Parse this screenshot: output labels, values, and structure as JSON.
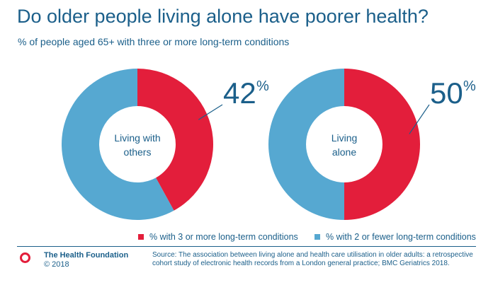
{
  "header": {
    "title": "Do older people living alone have poorer health?",
    "subtitle": "% of people aged 65+ with three or more long-term conditions"
  },
  "chart_data": {
    "type": "pie",
    "variant": "donut",
    "series_names": [
      "% with 3 or more long-term conditions",
      "% with 2 or fewer long-term conditions"
    ],
    "colors": [
      "#e31e3b",
      "#56a8d1"
    ],
    "legend_position": "bottom-right",
    "charts": [
      {
        "center_label": [
          "Living with",
          "others"
        ],
        "values": [
          42,
          58
        ],
        "value_label": "42",
        "value_unit": "%"
      },
      {
        "center_label": [
          "Living",
          "alone"
        ],
        "values": [
          50,
          50
        ],
        "value_label": "50",
        "value_unit": "%"
      }
    ]
  },
  "legend": {
    "items": [
      {
        "label": "% with 3 or more long-term conditions",
        "color": "#e31e3b"
      },
      {
        "label": "% with 2 or fewer long-term conditions",
        "color": "#56a8d1"
      }
    ]
  },
  "footer": {
    "org_name": "The Health Foundation",
    "copyright": "© 2018",
    "source": "Source: The association between living alone and health care utilisation in older adults: a retrospective cohort study of electronic health records from a London general practice; BMC Geriatrics 2018.",
    "logo_color": "#e31e3b"
  }
}
